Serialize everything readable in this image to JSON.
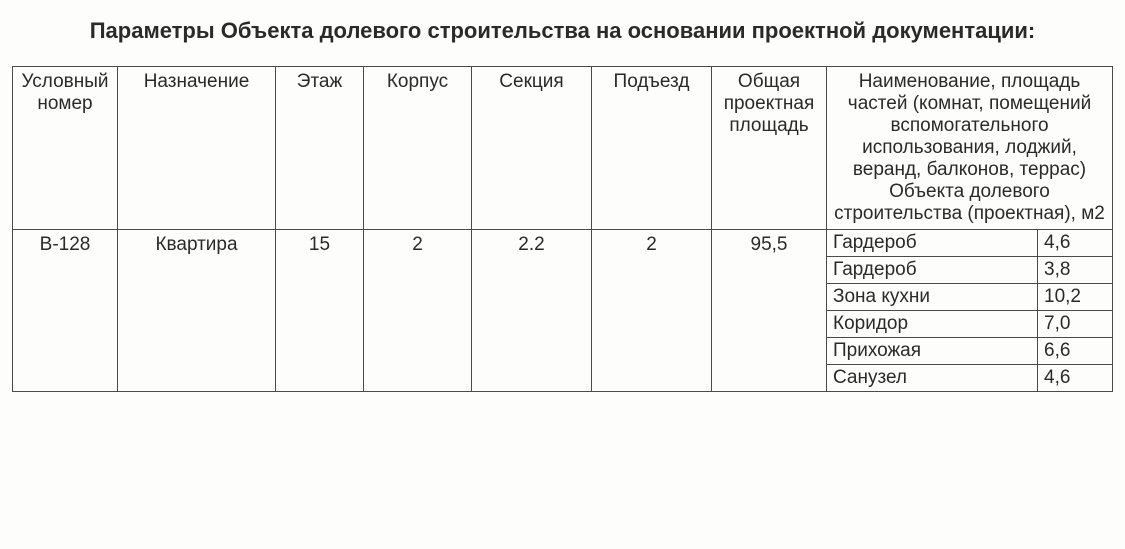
{
  "title": "Параметры Объекта долевого строительства на основании проектной документации:",
  "headers": {
    "col1": "Условный номер",
    "col2": "Назначение",
    "col3": "Этаж",
    "col4": "Корпус",
    "col5": "Секция",
    "col6": "Подъезд",
    "col7": "Общая проектная площадь",
    "col8": "Наименование, площадь частей (комнат, помещений вспомогательного использования, лоджий, веранд, балконов, террас) Объекта долевого строительства (проектная), м2"
  },
  "row": {
    "ref": "В-128",
    "purpose": "Квартира",
    "floor": "15",
    "building": "2",
    "section": "2.2",
    "entrance": "2",
    "area": "95,5"
  },
  "rooms": [
    {
      "name": "Гардероб",
      "area": "4,6"
    },
    {
      "name": "Гардероб",
      "area": "3,8"
    },
    {
      "name": "Зона кухни",
      "area": "10,2"
    },
    {
      "name": "Коридор",
      "area": "7,0"
    },
    {
      "name": "Прихожая",
      "area": "6,6"
    },
    {
      "name": "Санузел",
      "area": "4,6"
    }
  ]
}
